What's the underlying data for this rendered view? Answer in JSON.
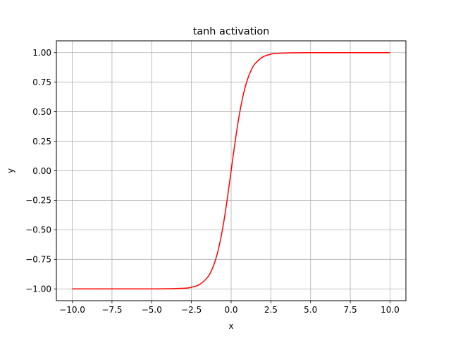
{
  "chart_data": {
    "type": "line",
    "title": "tanh activation",
    "xlabel": "x",
    "ylabel": "y",
    "xlim": [
      -11.0,
      11.0
    ],
    "ylim": [
      -1.1,
      1.1
    ],
    "grid": true,
    "x_ticks": [
      -10.0,
      -7.5,
      -5.0,
      -2.5,
      0.0,
      2.5,
      5.0,
      7.5,
      10.0
    ],
    "x_tick_labels": [
      "−10.0",
      "−7.5",
      "−5.0",
      "−2.5",
      "0.0",
      "2.5",
      "5.0",
      "7.5",
      "10.0"
    ],
    "y_ticks": [
      -1.0,
      -0.75,
      -0.5,
      -0.25,
      0.0,
      0.25,
      0.5,
      0.75,
      1.0
    ],
    "y_tick_labels": [
      "−1.00",
      "−0.75",
      "−0.50",
      "−0.25",
      "0.00",
      "0.25",
      "0.50",
      "0.75",
      "1.00"
    ],
    "series": [
      {
        "color": "#ff0000",
        "x": [
          -10,
          -5,
          -3,
          -2.5,
          -2,
          -1.5,
          -1.25,
          -1,
          -0.75,
          -0.5,
          -0.25,
          0,
          0.25,
          0.5,
          0.75,
          1,
          1.25,
          1.5,
          2,
          2.5,
          3,
          5,
          10
        ],
        "y": [
          -1.0,
          -0.9999,
          -0.995,
          -0.9866,
          -0.964,
          -0.9051,
          -0.8483,
          -0.7616,
          -0.6351,
          -0.4621,
          -0.2449,
          0.0,
          0.2449,
          0.4621,
          0.6351,
          0.7616,
          0.8483,
          0.9051,
          0.964,
          0.9866,
          0.995,
          0.9999,
          1.0
        ]
      }
    ]
  }
}
